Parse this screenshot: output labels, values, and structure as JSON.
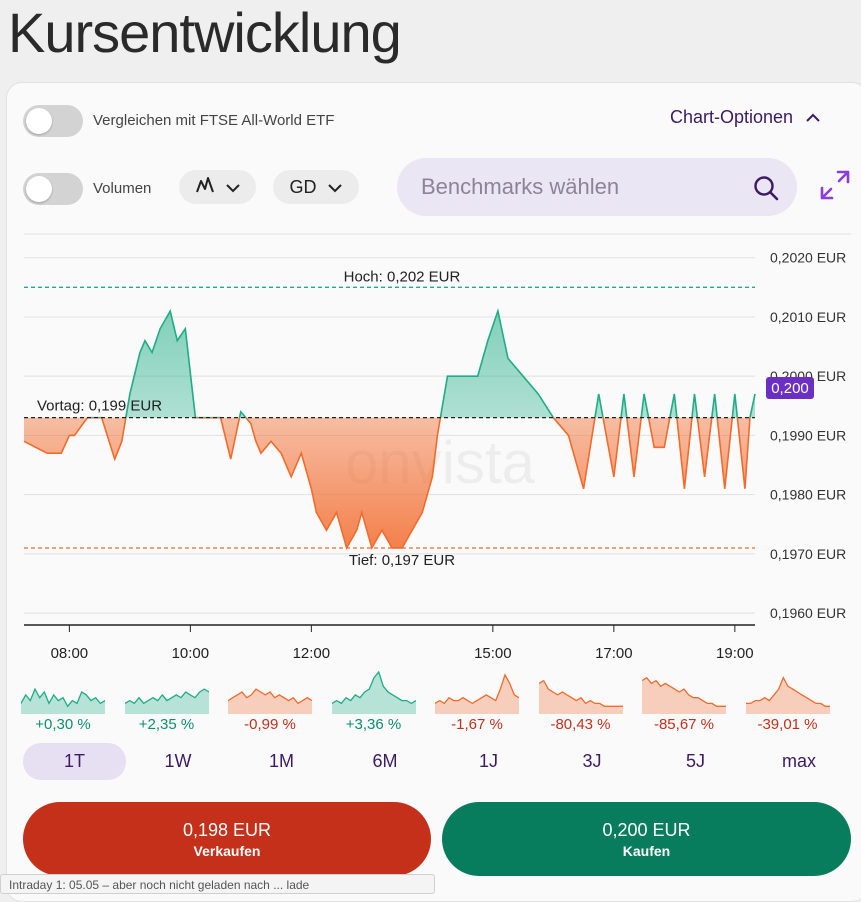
{
  "page_title": "Kursentwicklung",
  "compare": {
    "label": "Vergleichen mit FTSE All-World ETF",
    "enabled": false
  },
  "chart_options_label": "Chart-Optionen",
  "volume": {
    "label": "Volumen",
    "enabled": false
  },
  "chart_type_icon": "line-chart-icon",
  "indicator_label": "GD",
  "benchmark_search": {
    "placeholder": "Benchmarks wählen",
    "value": ""
  },
  "watermark": "onvista",
  "colors": {
    "up": "#1ead86",
    "down": "#f26b2d",
    "accent": "#6b2fc4",
    "brand_text": "#3c1a66",
    "sell": "#c4301a",
    "buy": "#077d5e"
  },
  "chart_data": {
    "type": "area",
    "x": [
      "07:15",
      "07:38",
      "07:52",
      "08:00",
      "08:05",
      "08:18",
      "08:32",
      "08:45",
      "08:52",
      "09:00",
      "09:10",
      "09:15",
      "09:22",
      "09:30",
      "09:40",
      "09:47",
      "09:55",
      "10:05",
      "10:10",
      "10:20",
      "10:30",
      "10:40",
      "10:50",
      "10:55",
      "11:00",
      "11:05",
      "11:10",
      "11:20",
      "11:30",
      "11:40",
      "11:50",
      "12:00",
      "12:05",
      "12:15",
      "12:25",
      "12:35",
      "12:45",
      "12:50",
      "13:00",
      "13:10",
      "13:20",
      "13:30",
      "13:40",
      "13:50",
      "14:00",
      "14:05",
      "14:15",
      "14:25",
      "14:35",
      "14:45",
      "14:55",
      "15:05",
      "15:15",
      "15:30",
      "15:45",
      "16:00",
      "16:15",
      "16:30",
      "16:45",
      "17:00",
      "17:10",
      "17:20",
      "17:30",
      "17:40",
      "17:50",
      "18:00",
      "18:10",
      "18:20",
      "18:30",
      "18:40",
      "18:50",
      "19:00",
      "19:10",
      "19:15",
      "19:20"
    ],
    "y": [
      0.1989,
      0.1987,
      0.1987,
      0.199,
      0.199,
      0.1993,
      0.1993,
      0.1986,
      0.1989,
      0.1997,
      0.2004,
      0.2006,
      0.2004,
      0.2008,
      0.2011,
      0.2006,
      0.2008,
      0.1993,
      0.1993,
      0.1993,
      0.1993,
      0.1986,
      0.1994,
      0.1993,
      0.1992,
      0.1989,
      0.1987,
      0.1989,
      0.1987,
      0.1983,
      0.1987,
      0.1981,
      0.1977,
      0.1974,
      0.1977,
      0.1971,
      0.1974,
      0.1977,
      0.1971,
      0.1974,
      0.1971,
      0.1971,
      0.1974,
      0.1977,
      0.1983,
      0.199,
      0.2,
      0.2,
      0.2,
      0.2,
      0.2006,
      0.2011,
      0.2003,
      0.2,
      0.1997,
      0.1993,
      0.199,
      0.1981,
      0.1997,
      0.1983,
      0.1997,
      0.1983,
      0.1997,
      0.1988,
      0.1988,
      0.1997,
      0.1981,
      0.1997,
      0.1983,
      0.1997,
      0.1981,
      0.1997,
      0.1981,
      0.1993,
      0.1997
    ],
    "prev_close": 0.1993,
    "prev_close_label": "Vortag: 0,199 EUR",
    "high": 0.2015,
    "high_label": "Hoch: 0,202 EUR",
    "low": 0.1971,
    "low_label": "Tief: 0,197 EUR",
    "current": 0.1998,
    "current_label": "0,200",
    "ylim": [
      0.1958,
      0.2024
    ],
    "y_ticks": [
      0.202,
      0.201,
      0.2,
      0.199,
      0.198,
      0.197,
      0.196
    ],
    "y_tick_labels": [
      "0,2020 EUR",
      "0,2010 EUR",
      "0,2000 EUR",
      "0,1990 EUR",
      "0,1980 EUR",
      "0,1970 EUR",
      "0,1960 EUR"
    ],
    "x_ticks": [
      "08:00",
      "10:00",
      "12:00",
      "15:00",
      "17:00",
      "19:00"
    ],
    "grid": true
  },
  "mini_charts": [
    {
      "period": "1T",
      "change": "+0,30 %",
      "trend": "up",
      "values": [
        3,
        6,
        4,
        8,
        5,
        7,
        3,
        6,
        4,
        5,
        2,
        4,
        3,
        7,
        6,
        4,
        5,
        3,
        4
      ]
    },
    {
      "period": "1W",
      "change": "+2,35 %",
      "trend": "up",
      "values": [
        3,
        4,
        3,
        5,
        3,
        4,
        5,
        4,
        6,
        4,
        5,
        6,
        5,
        7,
        6,
        5,
        7,
        8,
        7
      ]
    },
    {
      "period": "1M",
      "change": "-0,99 %",
      "trend": "down",
      "values": [
        4,
        5,
        6,
        7,
        5,
        6,
        8,
        7,
        6,
        7,
        5,
        6,
        5,
        4,
        5,
        3,
        4,
        5,
        4
      ]
    },
    {
      "period": "6M",
      "change": "+3,36 %",
      "trend": "up",
      "values": [
        3,
        4,
        3,
        5,
        4,
        6,
        5,
        7,
        8,
        12,
        14,
        9,
        7,
        6,
        5,
        4,
        4,
        3,
        4
      ]
    },
    {
      "period": "1J",
      "change": "-1,67 %",
      "trend": "down",
      "values": [
        3,
        4,
        3,
        5,
        4,
        4,
        5,
        4,
        3,
        4,
        5,
        6,
        5,
        4,
        8,
        13,
        10,
        6,
        5
      ]
    },
    {
      "period": "3J",
      "change": "-80,43 %",
      "trend": "down",
      "values": [
        10,
        11,
        8,
        7,
        6,
        7,
        6,
        5,
        4,
        5,
        3,
        4,
        3,
        3,
        2,
        2,
        2,
        2,
        2
      ]
    },
    {
      "period": "5J",
      "change": "-85,67 %",
      "trend": "down",
      "values": [
        11,
        12,
        10,
        11,
        9,
        10,
        9,
        8,
        7,
        8,
        6,
        5,
        5,
        4,
        3,
        3,
        2,
        2,
        2
      ]
    },
    {
      "period": "max",
      "change": "-39,01 %",
      "trend": "down",
      "values": [
        3,
        3,
        4,
        4,
        5,
        4,
        6,
        8,
        12,
        9,
        8,
        7,
        6,
        5,
        4,
        3,
        3,
        2,
        2
      ]
    }
  ],
  "periods": [
    {
      "label": "1T",
      "active": true
    },
    {
      "label": "1W",
      "active": false
    },
    {
      "label": "1M",
      "active": false
    },
    {
      "label": "6M",
      "active": false
    },
    {
      "label": "1J",
      "active": false
    },
    {
      "label": "3J",
      "active": false
    },
    {
      "label": "5J",
      "active": false
    },
    {
      "label": "max",
      "active": false
    }
  ],
  "sell": {
    "price": "0,198 EUR",
    "action": "Verkaufen"
  },
  "buy": {
    "price": "0,200 EUR",
    "action": "Kaufen"
  },
  "tooltip_text": "Intraday 1: 05.05 – aber noch nicht geladen nach ... lade"
}
